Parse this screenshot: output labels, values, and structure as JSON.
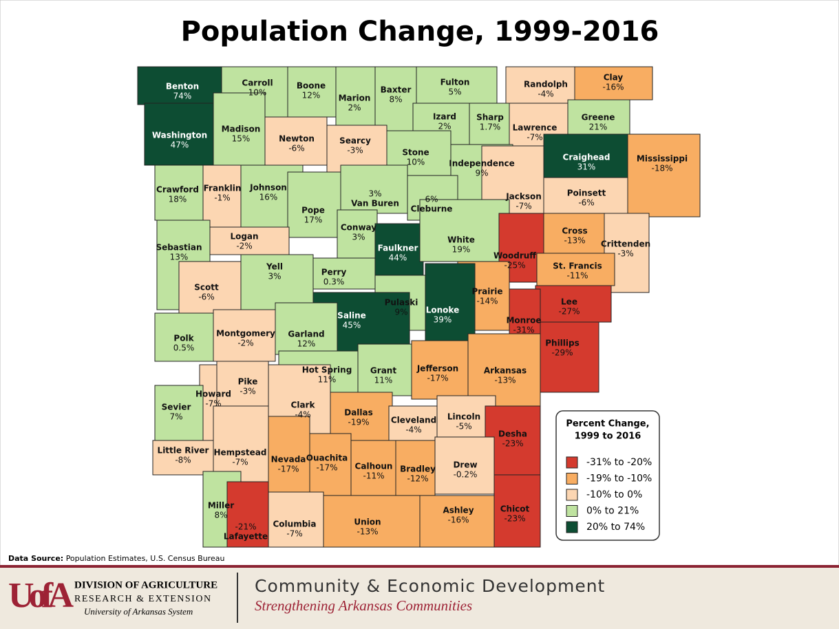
{
  "title": "Population Change, 1999-2016",
  "counties": [
    {
      "name": "Benton",
      "value": 74,
      "value_label": "74%"
    },
    {
      "name": "Carroll",
      "value": 10,
      "value_label": "10%"
    },
    {
      "name": "Boone",
      "value": 12,
      "value_label": "12%"
    },
    {
      "name": "Marion",
      "value": 2,
      "value_label": "2%"
    },
    {
      "name": "Baxter",
      "value": 8,
      "value_label": "8%"
    },
    {
      "name": "Fulton",
      "value": 5,
      "value_label": "5%"
    },
    {
      "name": "Randolph",
      "value": -4,
      "value_label": "-4%"
    },
    {
      "name": "Clay",
      "value": -16,
      "value_label": "-16%"
    },
    {
      "name": "Washington",
      "value": 47,
      "value_label": "47%"
    },
    {
      "name": "Madison",
      "value": 15,
      "value_label": "15%"
    },
    {
      "name": "Newton",
      "value": -6,
      "value_label": "-6%"
    },
    {
      "name": "Searcy",
      "value": -3,
      "value_label": "-3%"
    },
    {
      "name": "Izard",
      "value": 2,
      "value_label": "2%"
    },
    {
      "name": "Sharp",
      "value": 1.7,
      "value_label": "1.7%"
    },
    {
      "name": "Stone",
      "value": 10,
      "value_label": "10%"
    },
    {
      "name": "Lawrence",
      "value": -7,
      "value_label": "-7%"
    },
    {
      "name": "Greene",
      "value": 21,
      "value_label": "21%"
    },
    {
      "name": "Craighead",
      "value": 31,
      "value_label": "31%"
    },
    {
      "name": "Mississippi",
      "value": -18,
      "value_label": "-18%"
    },
    {
      "name": "Independence",
      "value": 9,
      "value_label": "9%"
    },
    {
      "name": "Crawford",
      "value": 18,
      "value_label": "18%"
    },
    {
      "name": "Franklin",
      "value": -1,
      "value_label": "-1%"
    },
    {
      "name": "Johnson",
      "value": 16,
      "value_label": "16%"
    },
    {
      "name": "Van Buren",
      "value": 3,
      "value_label": "3%"
    },
    {
      "name": "Cleburne",
      "value": 6,
      "value_label": "6%"
    },
    {
      "name": "Jackson",
      "value": -7,
      "value_label": "-7%"
    },
    {
      "name": "Poinsett",
      "value": -6,
      "value_label": "-6%"
    },
    {
      "name": "Pope",
      "value": 17,
      "value_label": "17%"
    },
    {
      "name": "Logan",
      "value": -2,
      "value_label": "-2%"
    },
    {
      "name": "Sebastian",
      "value": 13,
      "value_label": "13%"
    },
    {
      "name": "Conway",
      "value": 3,
      "value_label": "3%"
    },
    {
      "name": "Faulkner",
      "value": 44,
      "value_label": "44%"
    },
    {
      "name": "White",
      "value": 19,
      "value_label": "19%"
    },
    {
      "name": "Woodruff",
      "value": -25,
      "value_label": "-25%"
    },
    {
      "name": "Cross",
      "value": -13,
      "value_label": "-13%"
    },
    {
      "name": "Crittenden",
      "value": -3,
      "value_label": "-3%"
    },
    {
      "name": "Yell",
      "value": 3,
      "value_label": "3%"
    },
    {
      "name": "Scott",
      "value": -6,
      "value_label": "-6%"
    },
    {
      "name": "Perry",
      "value": 0.3,
      "value_label": "0.3%"
    },
    {
      "name": "St. Francis",
      "value": -11,
      "value_label": "-11%"
    },
    {
      "name": "Prairie",
      "value": -14,
      "value_label": "-14%"
    },
    {
      "name": "Pulaski",
      "value": 9,
      "value_label": "9%"
    },
    {
      "name": "Lonoke",
      "value": 39,
      "value_label": "39%"
    },
    {
      "name": "Saline",
      "value": 45,
      "value_label": "45%"
    },
    {
      "name": "Lee",
      "value": -27,
      "value_label": "-27%"
    },
    {
      "name": "Monroe",
      "value": -31,
      "value_label": "-31%"
    },
    {
      "name": "Phillips",
      "value": -29,
      "value_label": "-29%"
    },
    {
      "name": "Polk",
      "value": 0.5,
      "value_label": "0.5%"
    },
    {
      "name": "Montgomery",
      "value": -2,
      "value_label": "-2%"
    },
    {
      "name": "Garland",
      "value": 12,
      "value_label": "12%"
    },
    {
      "name": "Jefferson",
      "value": -17,
      "value_label": "-17%"
    },
    {
      "name": "Arkansas",
      "value": -13,
      "value_label": "-13%"
    },
    {
      "name": "Hot Spring",
      "value": 11,
      "value_label": "11%"
    },
    {
      "name": "Grant",
      "value": 11,
      "value_label": "11%"
    },
    {
      "name": "Howard",
      "value": -7,
      "value_label": "-7%"
    },
    {
      "name": "Pike",
      "value": -3,
      "value_label": "-3%"
    },
    {
      "name": "Sevier",
      "value": 7,
      "value_label": "7%"
    },
    {
      "name": "Clark",
      "value": -4,
      "value_label": "-4%"
    },
    {
      "name": "Dallas",
      "value": -19,
      "value_label": "-19%"
    },
    {
      "name": "Cleveland",
      "value": -4,
      "value_label": "-4%"
    },
    {
      "name": "Lincoln",
      "value": -5,
      "value_label": "-5%"
    },
    {
      "name": "Desha",
      "value": -23,
      "value_label": "-23%"
    },
    {
      "name": "Little River",
      "value": -8,
      "value_label": "-8%"
    },
    {
      "name": "Hempstead",
      "value": -7,
      "value_label": "-7%"
    },
    {
      "name": "Nevada",
      "value": -17,
      "value_label": "-17%"
    },
    {
      "name": "Ouachita",
      "value": -17,
      "value_label": "-17%"
    },
    {
      "name": "Calhoun",
      "value": -11,
      "value_label": "-11%"
    },
    {
      "name": "Bradley",
      "value": -12,
      "value_label": "-12%"
    },
    {
      "name": "Drew",
      "value": -0.2,
      "value_label": "-0.2%"
    },
    {
      "name": "Miller",
      "value": 8,
      "value_label": "8%"
    },
    {
      "name": "Lafayette",
      "value": -21,
      "value_label": "-21%"
    },
    {
      "name": "Columbia",
      "value": -7,
      "value_label": "-7%"
    },
    {
      "name": "Union",
      "value": -13,
      "value_label": "-13%"
    },
    {
      "name": "Ashley",
      "value": -16,
      "value_label": "-16%"
    },
    {
      "name": "Chicot",
      "value": -23,
      "value_label": "-23%"
    }
  ],
  "legend": {
    "title_lines": [
      "Percent Change,",
      "1999 to 2016"
    ],
    "items": [
      {
        "label": "-31% to -20%",
        "min": -31,
        "max": -20,
        "color": "#d43a2e"
      },
      {
        "label": "-19% to -10%",
        "min": -19,
        "max": -10,
        "color": "#f8ad62"
      },
      {
        "label": "-10% to 0%",
        "min": -10,
        "max": 0,
        "color": "#fcd6b2"
      },
      {
        "label": "0% to 21%",
        "min": 0,
        "max": 21,
        "color": "#bfe3a0"
      },
      {
        "label": "20% to 74%",
        "min": 20,
        "max": 74,
        "color": "#0d4d33"
      }
    ]
  },
  "source": {
    "label": "Data Source:",
    "text": "Population Estimates, U.S. Census Bureau"
  },
  "footer": {
    "logo": "UofA",
    "division": "DIVISION OF AGRICULTURE",
    "research": "RESEARCH & EXTENSION",
    "system": "University of Arkansas System",
    "unit": "Community & Economic Development",
    "tagline": "Strengthening Arkansas Communities"
  }
}
